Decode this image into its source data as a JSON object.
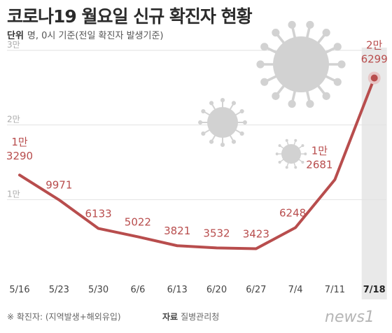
{
  "header": {
    "title": "코로나19 월요일 신규 확진자 현황",
    "unit_label": "단위",
    "unit_text": "명, 0시 기준(전일 확진자 발생기준)"
  },
  "footer": {
    "note": "※ 확진자: (지역발생+해외유입)",
    "source_label": "자료",
    "source_text": "질병관리청",
    "logo_text": "news1",
    "logo_mark": "1"
  },
  "colors": {
    "line": "#b84d4d",
    "label": "#b84d4d",
    "grid": "#e2e2e2",
    "tick": "#444444",
    "highlight_band": "#e9e9e9",
    "virus": "#d2d2d2"
  },
  "chart_data": {
    "type": "line",
    "categories": [
      "5/16",
      "5/23",
      "5/30",
      "6/6",
      "6/13",
      "6/20",
      "6/27",
      "7/4",
      "7/11",
      "7/18"
    ],
    "values": [
      13290,
      9971,
      6133,
      5022,
      3821,
      3532,
      3423,
      6248,
      12681,
      26299
    ],
    "data_labels": [
      {
        "man": "1만",
        "rest": "3290"
      },
      {
        "man": "",
        "rest": "9971"
      },
      {
        "man": "",
        "rest": "6133"
      },
      {
        "man": "",
        "rest": "5022"
      },
      {
        "man": "",
        "rest": "3821"
      },
      {
        "man": "",
        "rest": "3532"
      },
      {
        "man": "",
        "rest": "3423"
      },
      {
        "man": "",
        "rest": "6248"
      },
      {
        "man": "1만",
        "rest": "2681"
      },
      {
        "man": "2만",
        "rest": "6299"
      }
    ],
    "y_ticks": [
      {
        "value": 10000,
        "label": "1만"
      },
      {
        "value": 20000,
        "label": "2만"
      },
      {
        "value": 30000,
        "label": "3만"
      }
    ],
    "ylim": [
      0,
      30000
    ],
    "highlight_category": "7/18",
    "grid": true
  }
}
